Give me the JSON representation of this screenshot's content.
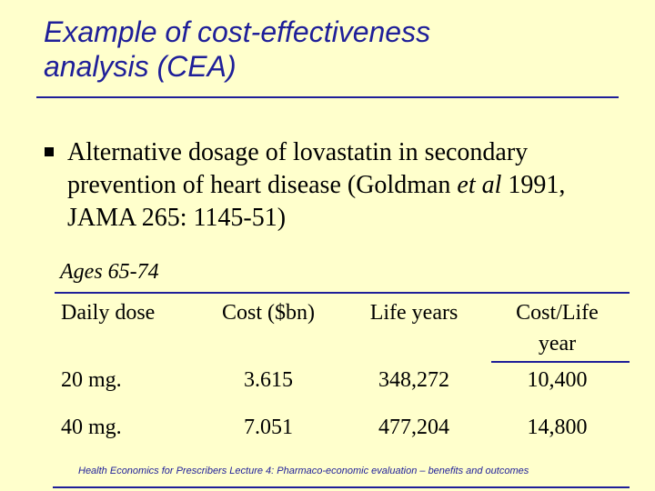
{
  "title": {
    "line1": "Example of cost-effectiveness",
    "line2": "analysis (CEA)"
  },
  "bullet": {
    "text_before_italic": "Alternative dosage of lovastatin in secondary prevention of heart disease (Goldman ",
    "italic": "et al",
    "text_after_italic": " 1991, JAMA 265: 1145-51)"
  },
  "table": {
    "caption": "Ages 65-74",
    "headers": {
      "dose": "Daily dose",
      "cost": "Cost ($bn)",
      "life_years": "Life years",
      "cost_per_life_year_1": "Cost/Life",
      "cost_per_life_year_2": "year"
    },
    "rows": [
      {
        "dose": "20 mg.",
        "cost": "3.615",
        "life_years": "348,272",
        "cost_per_life_year": "10,400"
      },
      {
        "dose": "40 mg.",
        "cost": "7.051",
        "life_years": "477,204",
        "cost_per_life_year": "14,800"
      }
    ]
  },
  "footer": "Health Economics for Prescribers Lecture 4: Pharmaco-economic evaluation – benefits and outcomes",
  "colors": {
    "background": "#FFFFCC",
    "title": "#1F1F99",
    "rule": "#1F1F99",
    "text": "#000000"
  }
}
